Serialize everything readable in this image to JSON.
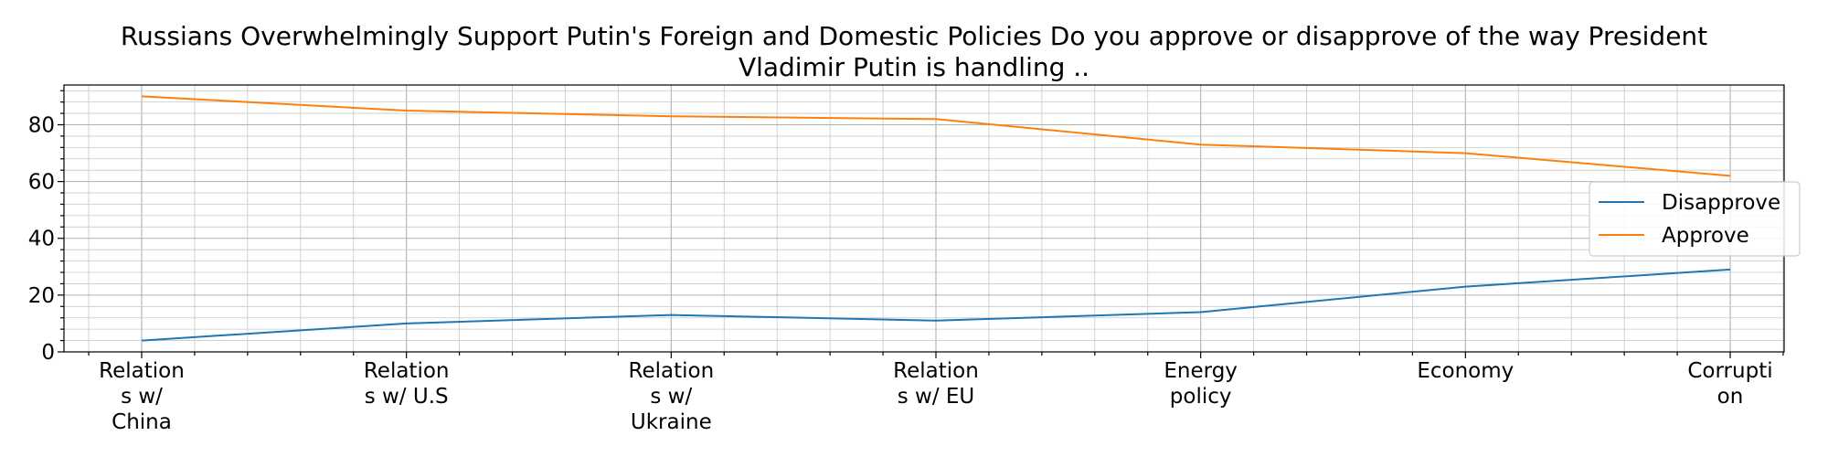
{
  "chart_data": {
    "type": "line",
    "title_lines": [
      "Russians Overwhelmingly Support Putin's Foreign and Domestic Policies Do you approve or disapprove of the way President",
      "Vladimir Putin is handling .."
    ],
    "xlabel": "",
    "ylabel": "",
    "categories": [
      [
        "Relation",
        "s w/",
        "China"
      ],
      [
        "Relation",
        "s w/ U.S"
      ],
      [
        "Relation",
        "s w/",
        "Ukraine"
      ],
      [
        "Relation",
        "s w/ EU"
      ],
      [
        "Energy",
        "policy"
      ],
      [
        "Economy"
      ],
      [
        "Corrupti",
        "on"
      ]
    ],
    "ylim": [
      0,
      94
    ],
    "yticks": [
      0,
      20,
      40,
      60,
      80
    ],
    "grid": true,
    "minor_grid": true,
    "legend_position": "center-right",
    "series": [
      {
        "name": "Disapprove",
        "color": "#1f77b4",
        "values": [
          4,
          10,
          13,
          11,
          14,
          23,
          29
        ]
      },
      {
        "name": "Approve",
        "color": "#ff7f0e",
        "values": [
          90,
          85,
          83,
          82,
          73,
          70,
          62
        ]
      }
    ]
  }
}
